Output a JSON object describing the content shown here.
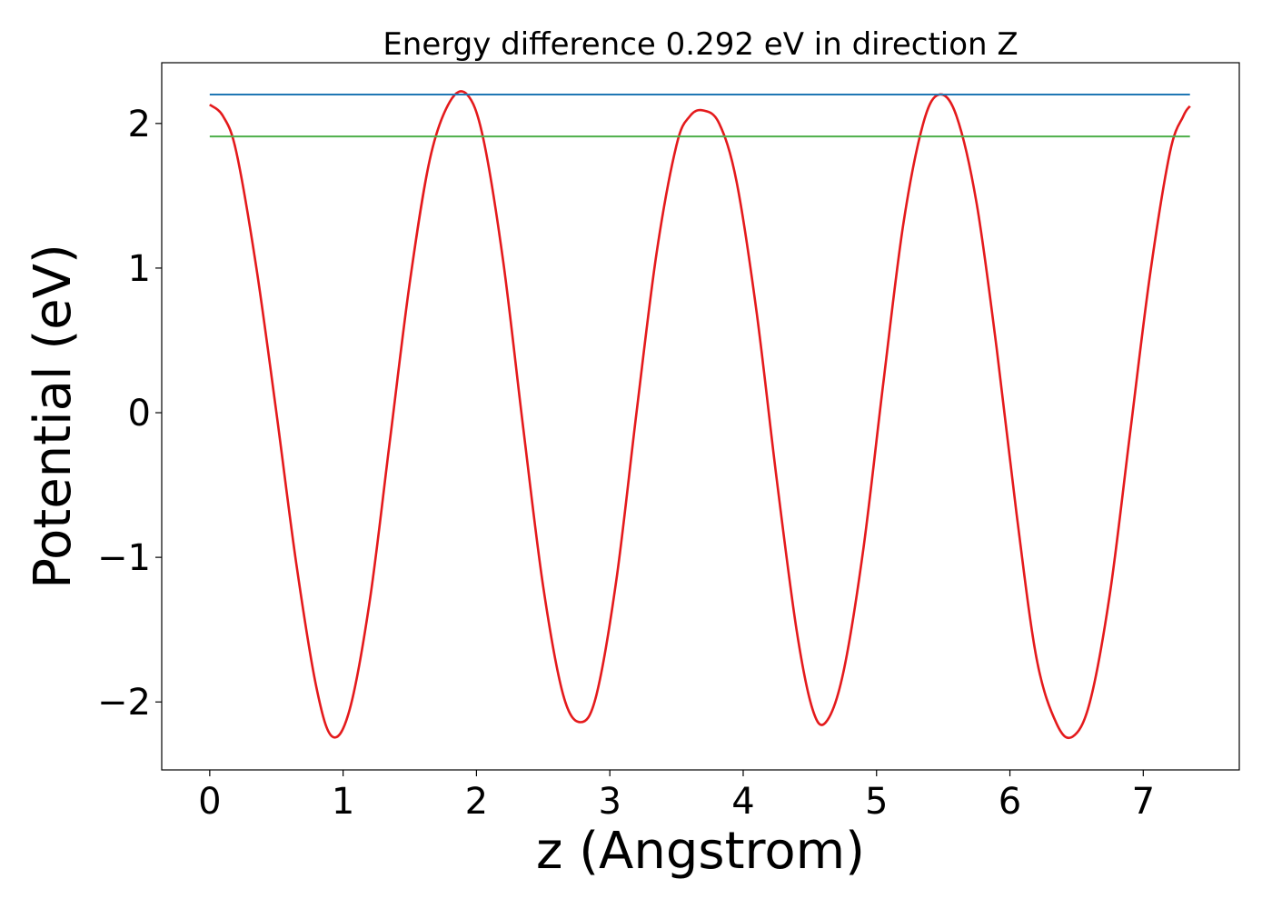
{
  "chart_data": {
    "type": "line",
    "title": "Energy difference 0.292 eV in direction Z",
    "xlabel": "z (Angstrom)",
    "ylabel": "Potential (eV)",
    "xlim": [
      -0.36,
      7.72
    ],
    "ylim": [
      -2.47,
      2.42
    ],
    "xticks": [
      0,
      1,
      2,
      3,
      4,
      5,
      6,
      7
    ],
    "xtick_labels": [
      "0",
      "1",
      "2",
      "3",
      "4",
      "5",
      "6",
      "7"
    ],
    "yticks": [
      -2,
      -1,
      0,
      1,
      2
    ],
    "ytick_labels": [
      "−2",
      "−1",
      "0",
      "1",
      "2"
    ],
    "grid": false,
    "series": [
      {
        "color": "#e41a1c",
        "x": [
          0,
          0.1,
          0.2,
          0.35,
          0.5,
          0.65,
          0.8,
          0.92,
          1.05,
          1.2,
          1.35,
          1.5,
          1.65,
          1.8,
          1.93,
          2.05,
          2.2,
          2.35,
          2.5,
          2.65,
          2.78,
          2.9,
          3.05,
          3.2,
          3.35,
          3.5,
          3.6,
          3.7,
          3.82,
          3.95,
          4.1,
          4.25,
          4.4,
          4.52,
          4.62,
          4.75,
          4.9,
          5.05,
          5.2,
          5.35,
          5.47,
          5.6,
          5.75,
          5.9,
          6.05,
          6.2,
          6.35,
          6.47,
          6.6,
          6.75,
          6.9,
          7.05,
          7.2,
          7.3,
          7.35
        ],
        "y": [
          2.13,
          2.05,
          1.8,
          1.0,
          0.0,
          -1.05,
          -1.9,
          -2.24,
          -2.05,
          -1.3,
          -0.2,
          0.9,
          1.75,
          2.15,
          2.2,
          1.9,
          1.05,
          -0.1,
          -1.2,
          -1.95,
          -2.14,
          -1.95,
          -1.15,
          0.0,
          1.1,
          1.85,
          2.05,
          2.09,
          2.0,
          1.6,
          0.7,
          -0.45,
          -1.5,
          -2.05,
          -2.14,
          -1.8,
          -0.95,
          0.2,
          1.3,
          2.0,
          2.2,
          2.05,
          1.45,
          0.45,
          -0.7,
          -1.7,
          -2.15,
          -2.24,
          -2.0,
          -1.25,
          -0.15,
          0.95,
          1.8,
          2.05,
          2.12
        ]
      },
      {
        "color": "#1f77b4",
        "x": [
          0,
          7.35
        ],
        "y": [
          2.2,
          2.2
        ]
      },
      {
        "color": "#4daf4a",
        "x": [
          0,
          7.35
        ],
        "y": [
          1.91,
          1.91
        ]
      }
    ]
  }
}
